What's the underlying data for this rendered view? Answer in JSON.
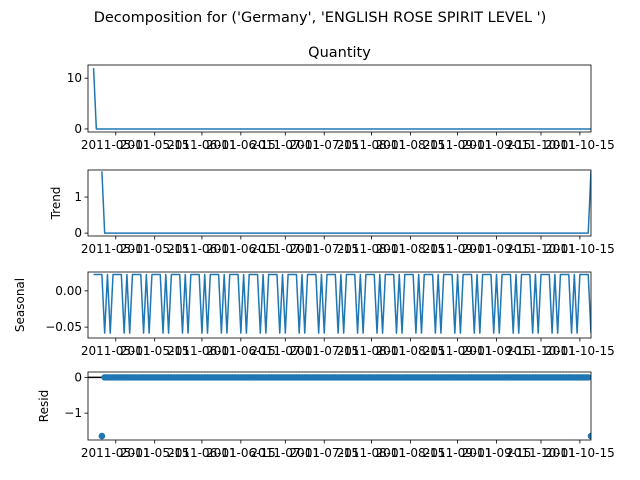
{
  "suptitle": "Decomposition for ('Germany', 'ENGLISH ROSE SPIRIT LEVEL ')",
  "colors": {
    "line": "#1f77b4",
    "axis": "#000000",
    "background": "#ffffff"
  },
  "x_tick_labels": [
    "2011-05-01",
    "2011-05-15",
    "2011-06-01",
    "2011-06-15",
    "2011-07-01",
    "2011-07-15",
    "2011-08-01",
    "2011-08-15",
    "2011-09-01",
    "2011-09-15",
    "2011-10-01",
    "2011-10-15"
  ],
  "chart_data": [
    {
      "type": "line",
      "title": "Quantity",
      "ylabel": "",
      "x_range": [
        "2011-04-21",
        "2011-10-19"
      ],
      "ylim": [
        -0.6,
        12.6
      ],
      "yticks": [
        0,
        10
      ],
      "series": [
        {
          "values": [
            12,
            0,
            0,
            0,
            0,
            0,
            0,
            0,
            0,
            0,
            0,
            0,
            0,
            0,
            0,
            0,
            0,
            0,
            0,
            0,
            0,
            0,
            0,
            0,
            0,
            0,
            0,
            0,
            0,
            0,
            0,
            0,
            0,
            0,
            0,
            0,
            0,
            0,
            0,
            0,
            0,
            0,
            0,
            0,
            0,
            0,
            0,
            0,
            0,
            0,
            0,
            0,
            0,
            0,
            0,
            0,
            0,
            0,
            0,
            0,
            0,
            0,
            0,
            0,
            0,
            0,
            0,
            0,
            0,
            0,
            0,
            0,
            0,
            0,
            0,
            0,
            0,
            0,
            0,
            0,
            0,
            0,
            0,
            0,
            0,
            0,
            0,
            0,
            0,
            0,
            0,
            0,
            0,
            0,
            0,
            0,
            0,
            0,
            0,
            0,
            0,
            0,
            0,
            0,
            0,
            0,
            0,
            0,
            0,
            0,
            0,
            0,
            0,
            0,
            0,
            0,
            0,
            0,
            0,
            0,
            0,
            0,
            0,
            0,
            0,
            0,
            0,
            0,
            0,
            0,
            0,
            0,
            0,
            0,
            0,
            0,
            0,
            0,
            0,
            0,
            0,
            0,
            0,
            0,
            0,
            0,
            0,
            0,
            0,
            0,
            0,
            0,
            0,
            0,
            0,
            0,
            0,
            0,
            0,
            0,
            0,
            0,
            0,
            0,
            0,
            0,
            0,
            0,
            0,
            0,
            0,
            0,
            0,
            0,
            0,
            0,
            0,
            0,
            0,
            0,
            0,
            12
          ]
        }
      ],
      "markers": false
    },
    {
      "type": "line",
      "title": "",
      "ylabel": "Trend",
      "x_range": [
        "2011-04-21",
        "2011-10-19"
      ],
      "ylim": [
        -0.08,
        1.75
      ],
      "yticks": [
        0,
        1
      ],
      "series": [
        {
          "values": [
            null,
            null,
            null,
            1.714,
            0,
            0,
            0,
            0,
            0,
            0,
            0,
            0,
            0,
            0,
            0,
            0,
            0,
            0,
            0,
            0,
            0,
            0,
            0,
            0,
            0,
            0,
            0,
            0,
            0,
            0,
            0,
            0,
            0,
            0,
            0,
            0,
            0,
            0,
            0,
            0,
            0,
            0,
            0,
            0,
            0,
            0,
            0,
            0,
            0,
            0,
            0,
            0,
            0,
            0,
            0,
            0,
            0,
            0,
            0,
            0,
            0,
            0,
            0,
            0,
            0,
            0,
            0,
            0,
            0,
            0,
            0,
            0,
            0,
            0,
            0,
            0,
            0,
            0,
            0,
            0,
            0,
            0,
            0,
            0,
            0,
            0,
            0,
            0,
            0,
            0,
            0,
            0,
            0,
            0,
            0,
            0,
            0,
            0,
            0,
            0,
            0,
            0,
            0,
            0,
            0,
            0,
            0,
            0,
            0,
            0,
            0,
            0,
            0,
            0,
            0,
            0,
            0,
            0,
            0,
            0,
            0,
            0,
            0,
            0,
            0,
            0,
            0,
            0,
            0,
            0,
            0,
            0,
            0,
            0,
            0,
            0,
            0,
            0,
            0,
            0,
            0,
            0,
            0,
            0,
            0,
            0,
            0,
            0,
            0,
            0,
            0,
            0,
            0,
            0,
            0,
            0,
            0,
            0,
            0,
            0,
            0,
            0,
            0,
            0,
            0,
            0,
            0,
            0,
            0,
            0,
            0,
            0,
            0,
            0,
            0,
            0,
            0,
            0,
            0,
            1.714,
            null,
            null,
            null
          ]
        }
      ],
      "markers": false
    },
    {
      "type": "line",
      "title": "",
      "ylabel": "Seasonal",
      "x_range": [
        "2011-04-21",
        "2011-10-19"
      ],
      "ylim": [
        -0.065,
        0.026
      ],
      "yticks": [
        -0.05,
        0.0
      ],
      "yticklabels": [
        "−0.05",
        "0.00"
      ],
      "weekly_pattern": [
        0.0225,
        0.0225,
        0.0225,
        0.0225,
        -0.0582,
        0.0225,
        -0.0582
      ],
      "markers": false
    },
    {
      "type": "scatter",
      "title": "",
      "ylabel": "Resid",
      "x_range": [
        "2011-04-21",
        "2011-10-19"
      ],
      "ylim": [
        -1.75,
        0.15
      ],
      "yticks": [
        -1,
        0
      ],
      "yticklabels": [
        "−1",
        "0"
      ],
      "zero_line": true,
      "series": [
        {
          "values": [
            null,
            null,
            null,
            -1.64,
            0,
            0,
            0,
            0,
            0,
            0,
            0,
            0,
            0,
            0,
            0,
            0,
            0,
            0,
            0,
            0,
            0,
            0,
            0,
            0,
            0,
            0,
            0,
            0,
            0,
            0,
            0,
            0,
            0,
            0,
            0,
            0,
            0,
            0,
            0,
            0,
            0,
            0,
            0,
            0,
            0,
            0,
            0,
            0,
            0,
            0,
            0,
            0,
            0,
            0,
            0,
            0,
            0,
            0,
            0,
            0,
            0,
            0,
            0,
            0,
            0,
            0,
            0,
            0,
            0,
            0,
            0,
            0,
            0,
            0,
            0,
            0,
            0,
            0,
            0,
            0,
            0,
            0,
            0,
            0,
            0,
            0,
            0,
            0,
            0,
            0,
            0,
            0,
            0,
            0,
            0,
            0,
            0,
            0,
            0,
            0,
            0,
            0,
            0,
            0,
            0,
            0,
            0,
            0,
            0,
            0,
            0,
            0,
            0,
            0,
            0,
            0,
            0,
            0,
            0,
            0,
            0,
            0,
            0,
            0,
            0,
            0,
            0,
            0,
            0,
            0,
            0,
            0,
            0,
            0,
            0,
            0,
            0,
            0,
            0,
            0,
            0,
            0,
            0,
            0,
            0,
            0,
            0,
            0,
            0,
            0,
            0,
            0,
            0,
            0,
            0,
            0,
            0,
            0,
            0,
            0,
            0,
            0,
            0,
            0,
            0,
            0,
            0,
            0,
            0,
            0,
            0,
            0,
            0,
            0,
            0,
            0,
            0,
            0,
            0,
            -1.64,
            null,
            null,
            null
          ]
        }
      ],
      "markers": true
    }
  ]
}
